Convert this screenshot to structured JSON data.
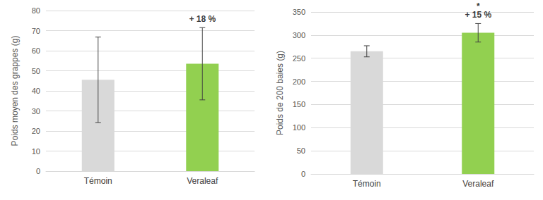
{
  "chart_data": [
    {
      "type": "bar",
      "categories": [
        "Témoin",
        "Veraleaf"
      ],
      "values": [
        45.5,
        53.5
      ],
      "errors": [
        21.3,
        18
      ],
      "colors": [
        "#d9d9d9",
        "#92d050"
      ],
      "y_label": "Poids moyen des grappes (g)",
      "ylim": [
        0,
        80
      ],
      "yticks": [
        0,
        10,
        20,
        30,
        40,
        50,
        60,
        70,
        80
      ],
      "grid": true,
      "annotations": [
        {
          "category": "Veraleaf",
          "text": "+ 18 %"
        }
      ]
    },
    {
      "type": "bar",
      "categories": [
        "Témoin",
        "Veraleaf"
      ],
      "values": [
        265,
        305
      ],
      "errors": [
        12,
        20
      ],
      "colors": [
        "#d9d9d9",
        "#92d050"
      ],
      "y_label": "Poids de 200 baies (g)",
      "ylim": [
        0,
        350
      ],
      "yticks": [
        0,
        50,
        100,
        150,
        200,
        250,
        300,
        350
      ],
      "grid": true,
      "annotations": [
        {
          "category": "Veraleaf",
          "text": "*"
        },
        {
          "category": "Veraleaf",
          "text": "+ 15 %"
        }
      ]
    }
  ]
}
